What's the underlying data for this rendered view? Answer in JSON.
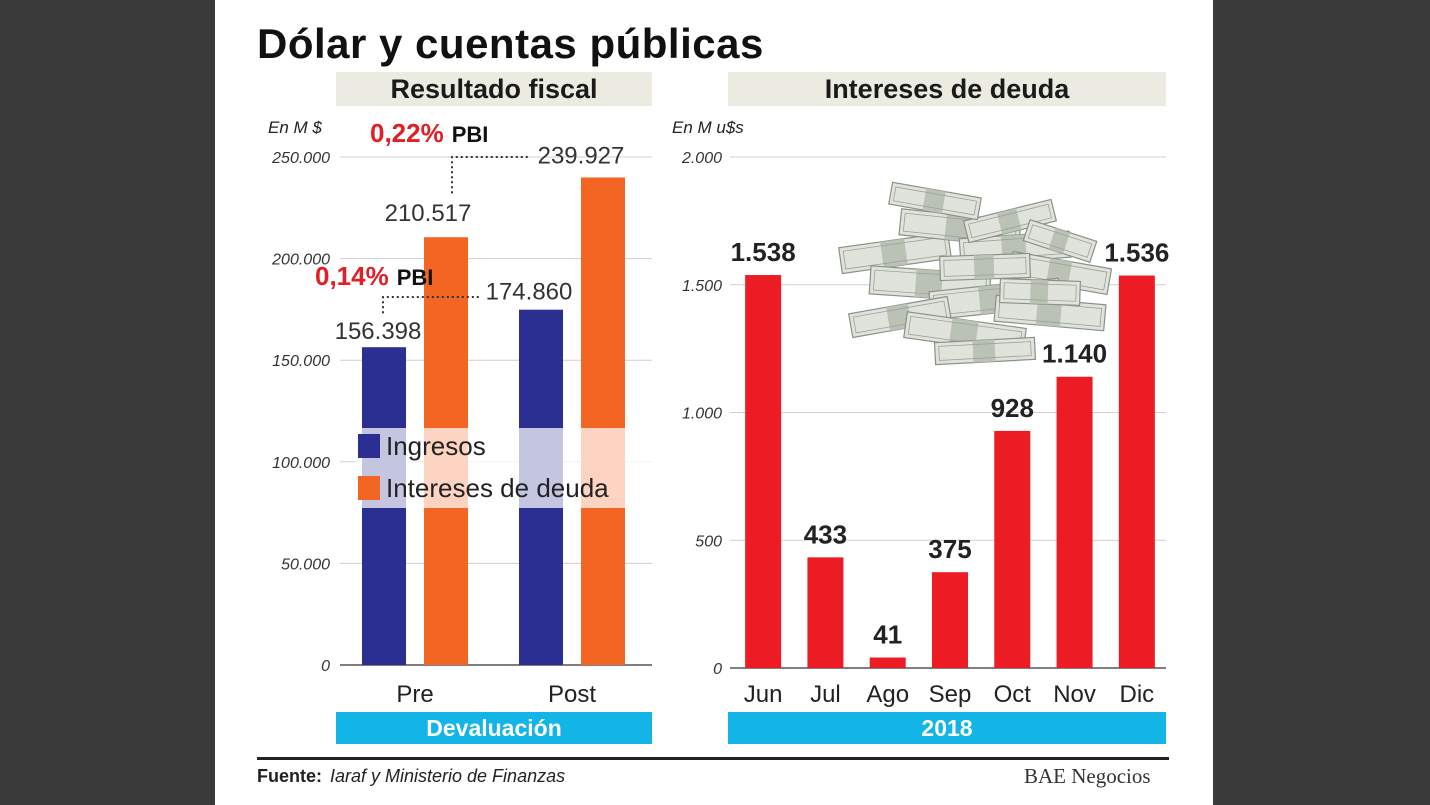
{
  "title": "Dólar y cuentas públicas",
  "source_label": "Fuente:",
  "source_text": "Iaraf y Ministerio de Finanzas",
  "brand": "BAE Negocios",
  "colors": {
    "ingresos": "#2c2f92",
    "intereses": "#f26522",
    "monthly": "#ed1c24",
    "section_bar": "#13b4e6",
    "header_bg": "#ebebe2",
    "pbi_red": "#e31e24"
  },
  "chart_data": [
    {
      "type": "bar",
      "title": "Resultado fiscal",
      "unit": "En M $",
      "categories": [
        "Pre",
        "Post"
      ],
      "series": [
        {
          "name": "Ingresos",
          "values": [
            156398,
            174860
          ]
        },
        {
          "name": "Intereses de deuda",
          "values": [
            210517,
            239927
          ]
        }
      ],
      "value_labels": [
        [
          "156.398",
          "174.860"
        ],
        [
          "210.517",
          "239.927"
        ]
      ],
      "ylim": [
        0,
        250000
      ],
      "yticks": [
        0,
        50000,
        100000,
        150000,
        200000,
        250000
      ],
      "ytick_labels": [
        "0",
        "50.000",
        "100.000",
        "150.000",
        "200.000",
        "250.000"
      ],
      "annotations": [
        {
          "pct": "0,14%",
          "unit": "PBI"
        },
        {
          "pct": "0,22%",
          "unit": "PBI"
        }
      ],
      "xgroup_label": "Devaluación",
      "legend": "center-left",
      "grid": true
    },
    {
      "type": "bar",
      "title": "Intereses de deuda",
      "unit": "En M u$s",
      "categories": [
        "Jun",
        "Jul",
        "Ago",
        "Sep",
        "Oct",
        "Nov",
        "Dic"
      ],
      "values": [
        1538,
        433,
        41,
        375,
        928,
        1140,
        1536
      ],
      "value_labels": [
        "1.538",
        "433",
        "41",
        "375",
        "928",
        "1.140",
        "1.536"
      ],
      "ylim": [
        0,
        2000
      ],
      "yticks": [
        0,
        500,
        1000,
        1500,
        2000
      ],
      "ytick_labels": [
        "0",
        "500",
        "1.000",
        "1.500",
        "2.000"
      ],
      "xgroup_label": "2018",
      "grid": true
    }
  ]
}
